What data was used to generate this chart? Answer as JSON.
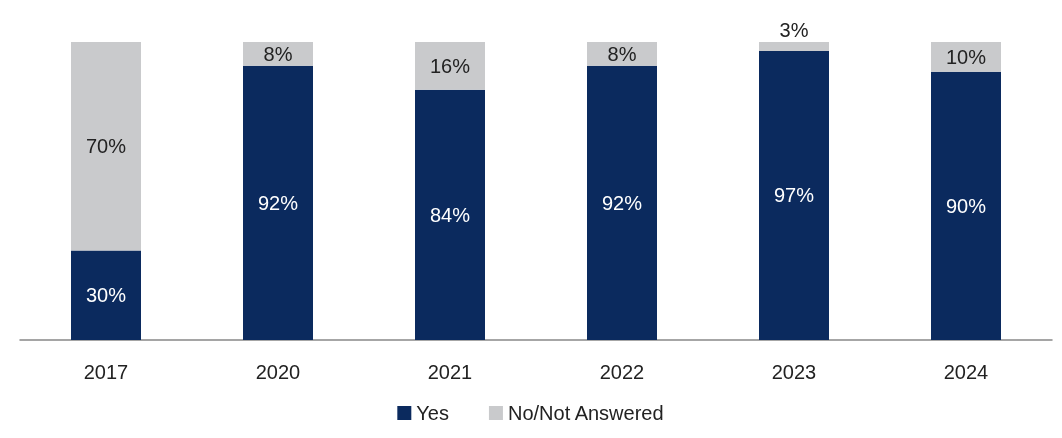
{
  "chart_data": {
    "type": "bar",
    "stacked": true,
    "categories": [
      "2017",
      "2020",
      "2021",
      "2022",
      "2023",
      "2024"
    ],
    "series": [
      {
        "name": "Yes",
        "color": "#0b2a5e",
        "values": [
          30,
          92,
          84,
          92,
          97,
          90
        ],
        "value_labels": [
          "30%",
          "92%",
          "84%",
          "92%",
          "97%",
          "90%"
        ]
      },
      {
        "name": "No/Not Answered",
        "color": "#c9cacc",
        "values": [
          70,
          8,
          16,
          8,
          3,
          10
        ],
        "value_labels": [
          "70%",
          "8%",
          "16%",
          "8%",
          "3%",
          "10%"
        ]
      }
    ],
    "legend": "bottom",
    "grid": false
  }
}
